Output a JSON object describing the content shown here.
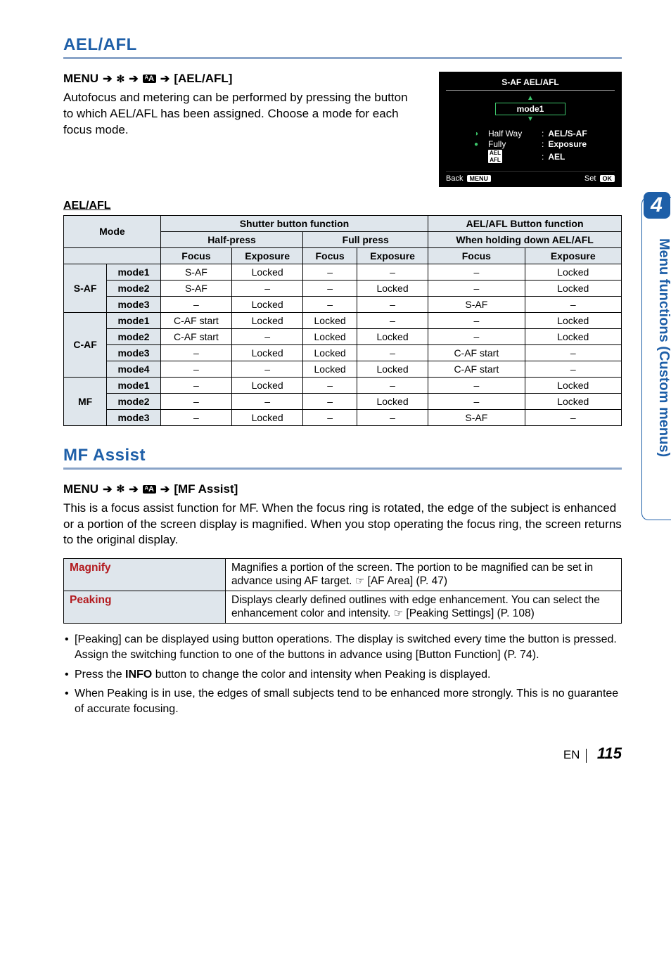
{
  "sideTab": {
    "number": "4",
    "text": "Menu functions (Custom menus)"
  },
  "section1": {
    "title": "AEL/AFL",
    "menuPrefix": "MENU",
    "menuTarget": "[AEL/AFL]",
    "description": "Autofocus and metering can be performed by pressing the button to which AEL/AFL has been assigned. Choose a mode for each focus mode.",
    "tableCaption": "AEL/AFL",
    "lcd": {
      "title": "S-AF AEL/AFL",
      "modeLabel": "mode1",
      "line1_left": "Half Way",
      "line1_right": "AEL/S-AF",
      "line2_left": "Fully",
      "line2_right": "Exposure",
      "line3_right": "AEL",
      "back": "Back",
      "backBadge": "MENU",
      "set": "Set",
      "setBadge": "OK"
    },
    "headers": {
      "shutter": "Shutter button function",
      "aelBtn": "AEL/AFL Button function",
      "mode": "Mode",
      "half": "Half-press",
      "full": "Full press",
      "hold": "When holding down AEL/AFL",
      "focus": "Focus",
      "exposure": "Exposure"
    },
    "groups": [
      {
        "name": "S-AF",
        "rows": [
          {
            "mode": "mode1",
            "cells": [
              "S-AF",
              "Locked",
              "–",
              "–",
              "–",
              "Locked"
            ]
          },
          {
            "mode": "mode2",
            "cells": [
              "S-AF",
              "–",
              "–",
              "Locked",
              "–",
              "Locked"
            ]
          },
          {
            "mode": "mode3",
            "cells": [
              "–",
              "Locked",
              "–",
              "–",
              "S-AF",
              "–"
            ]
          }
        ]
      },
      {
        "name": "C-AF",
        "rows": [
          {
            "mode": "mode1",
            "cells": [
              "C-AF start",
              "Locked",
              "Locked",
              "–",
              "–",
              "Locked"
            ]
          },
          {
            "mode": "mode2",
            "cells": [
              "C-AF start",
              "–",
              "Locked",
              "Locked",
              "–",
              "Locked"
            ]
          },
          {
            "mode": "mode3",
            "cells": [
              "–",
              "Locked",
              "Locked",
              "–",
              "C-AF start",
              "–"
            ]
          },
          {
            "mode": "mode4",
            "cells": [
              "–",
              "–",
              "Locked",
              "Locked",
              "C-AF start",
              "–"
            ]
          }
        ]
      },
      {
        "name": "MF",
        "rows": [
          {
            "mode": "mode1",
            "cells": [
              "–",
              "Locked",
              "–",
              "–",
              "–",
              "Locked"
            ]
          },
          {
            "mode": "mode2",
            "cells": [
              "–",
              "–",
              "–",
              "Locked",
              "–",
              "Locked"
            ]
          },
          {
            "mode": "mode3",
            "cells": [
              "–",
              "Locked",
              "–",
              "–",
              "S-AF",
              "–"
            ]
          }
        ]
      }
    ]
  },
  "section2": {
    "title": "MF Assist",
    "menuPrefix": "MENU",
    "menuTarget": "[MF Assist]",
    "description": "This is a focus assist function for MF. When the focus ring is rotated, the edge of the subject is enhanced or a portion of the screen display is magnified. When you stop operating the focus ring, the screen returns to the original display.",
    "features": [
      {
        "name": "Magnify",
        "text_pre": "Magnifies a portion of the screen. The portion to be magnified can be set in advance using AF target. ",
        "ref": " [AF Area] (P. 47)"
      },
      {
        "name": "Peaking",
        "text_pre": "Displays clearly defined outlines with edge enhancement. You can select the enhancement color and intensity. ",
        "ref": " [Peaking Settings] (P. 108)"
      }
    ],
    "notes": [
      "[Peaking] can be displayed using button operations. The display is switched every time the button is pressed. Assign the switching function to one of the buttons in advance using [Button Function] (P. 74).",
      "Press the INFO button to change the color and intensity when Peaking is displayed.",
      "When Peaking is in use, the edges of small subjects tend to be enhanced more strongly. This is no guarantee of accurate focusing."
    ]
  },
  "footer": {
    "lang": "EN",
    "page": "115"
  },
  "style": {
    "blue": "#1e5fa8",
    "underlineBlue": "#8aa4c8",
    "thBg": "#dfe6ec",
    "red": "#b31b1f",
    "green": "#3cc46a"
  }
}
